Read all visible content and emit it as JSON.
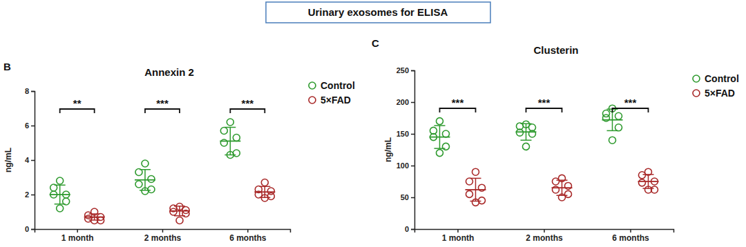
{
  "header": "Urinary exosomes for ELISA",
  "chart_data": [
    {
      "type": "scatter",
      "panel": "B",
      "title": "Annexin 2",
      "y_label": "ng/mL",
      "categories": [
        "1 month",
        "2 months",
        "6 months"
      ],
      "ylim": [
        0,
        8
      ],
      "yticks": [
        0,
        2,
        4,
        6,
        8
      ],
      "grid": false,
      "legend": "right",
      "marker": "circle",
      "annotations": [
        "**",
        "***",
        "***"
      ],
      "series": [
        {
          "name": "Control",
          "color": "#2e9a2e",
          "values": [
            [
              2.8,
              2.4,
              2.0,
              2.0,
              1.6,
              1.2
            ],
            [
              3.8,
              3.3,
              2.9,
              2.6,
              2.3,
              2.2
            ],
            [
              6.2,
              5.7,
              5.3,
              5.0,
              4.4,
              4.3
            ]
          ],
          "mean": [
            2.0,
            2.85,
            5.1
          ],
          "sd": [
            0.55,
            0.6,
            0.8
          ]
        },
        {
          "name": "5×FAD",
          "color": "#a82828",
          "values": [
            [
              1.0,
              0.8,
              0.7,
              0.6,
              0.5,
              0.5
            ],
            [
              1.3,
              1.2,
              1.1,
              1.0,
              0.9,
              0.5
            ],
            [
              2.7,
              2.3,
              2.2,
              2.0,
              1.9,
              1.8
            ]
          ],
          "mean": [
            0.7,
            1.05,
            2.15
          ],
          "sd": [
            0.18,
            0.28,
            0.32
          ]
        }
      ]
    },
    {
      "type": "scatter",
      "panel": "C",
      "title": "Clusterin",
      "y_label": "ng/mL",
      "categories": [
        "1 month",
        "2 months",
        "6 months"
      ],
      "ylim": [
        0,
        250
      ],
      "yticks": [
        0,
        50,
        100,
        150,
        200,
        250
      ],
      "grid": false,
      "legend": "right",
      "marker": "circle",
      "annotations": [
        "***",
        "***",
        "***"
      ],
      "series": [
        {
          "name": "Control",
          "color": "#2e9a2e",
          "values": [
            [
              170,
              155,
              150,
              145,
              130,
              120
            ],
            [
              165,
              162,
              160,
              152,
              150,
              130
            ],
            [
              190,
              182,
              178,
              175,
              160,
              140
            ]
          ],
          "mean": [
            145,
            153,
            172
          ],
          "sd": [
            18,
            13,
            17
          ]
        },
        {
          "name": "5×FAD",
          "color": "#a82828",
          "values": [
            [
              90,
              75,
              65,
              55,
              45,
              42
            ],
            [
              80,
              75,
              68,
              62,
              55,
              50
            ],
            [
              90,
              85,
              75,
              73,
              62,
              62
            ]
          ],
          "mean": [
            62,
            65,
            75
          ],
          "sd": [
            18,
            12,
            11
          ]
        }
      ]
    }
  ]
}
